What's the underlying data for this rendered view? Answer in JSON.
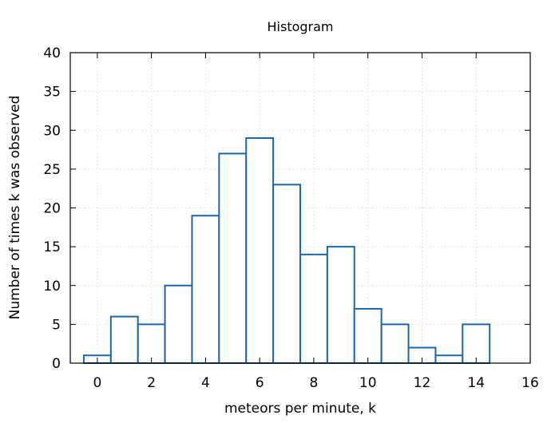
{
  "chart_data": {
    "type": "bar",
    "title": "Histogram",
    "xlabel": "meteors per minute, k",
    "ylabel": "Number of times k was observed",
    "x": [
      0,
      1,
      2,
      3,
      4,
      5,
      6,
      7,
      8,
      9,
      10,
      11,
      12,
      13,
      14
    ],
    "values": [
      1,
      6,
      5,
      10,
      19,
      27,
      29,
      23,
      14,
      15,
      7,
      5,
      2,
      1,
      5
    ],
    "bin_width": 1,
    "xlim": [
      -1,
      16
    ],
    "ylim": [
      0,
      40
    ],
    "xticks": [
      "0",
      "2",
      "4",
      "6",
      "8",
      "10",
      "12",
      "14",
      "16"
    ],
    "yticks": [
      "0",
      "5",
      "10",
      "15",
      "20",
      "25",
      "30",
      "35",
      "40"
    ],
    "grid": true,
    "bar_color": "#1f66a8",
    "bar_fill": "#ffffff"
  }
}
